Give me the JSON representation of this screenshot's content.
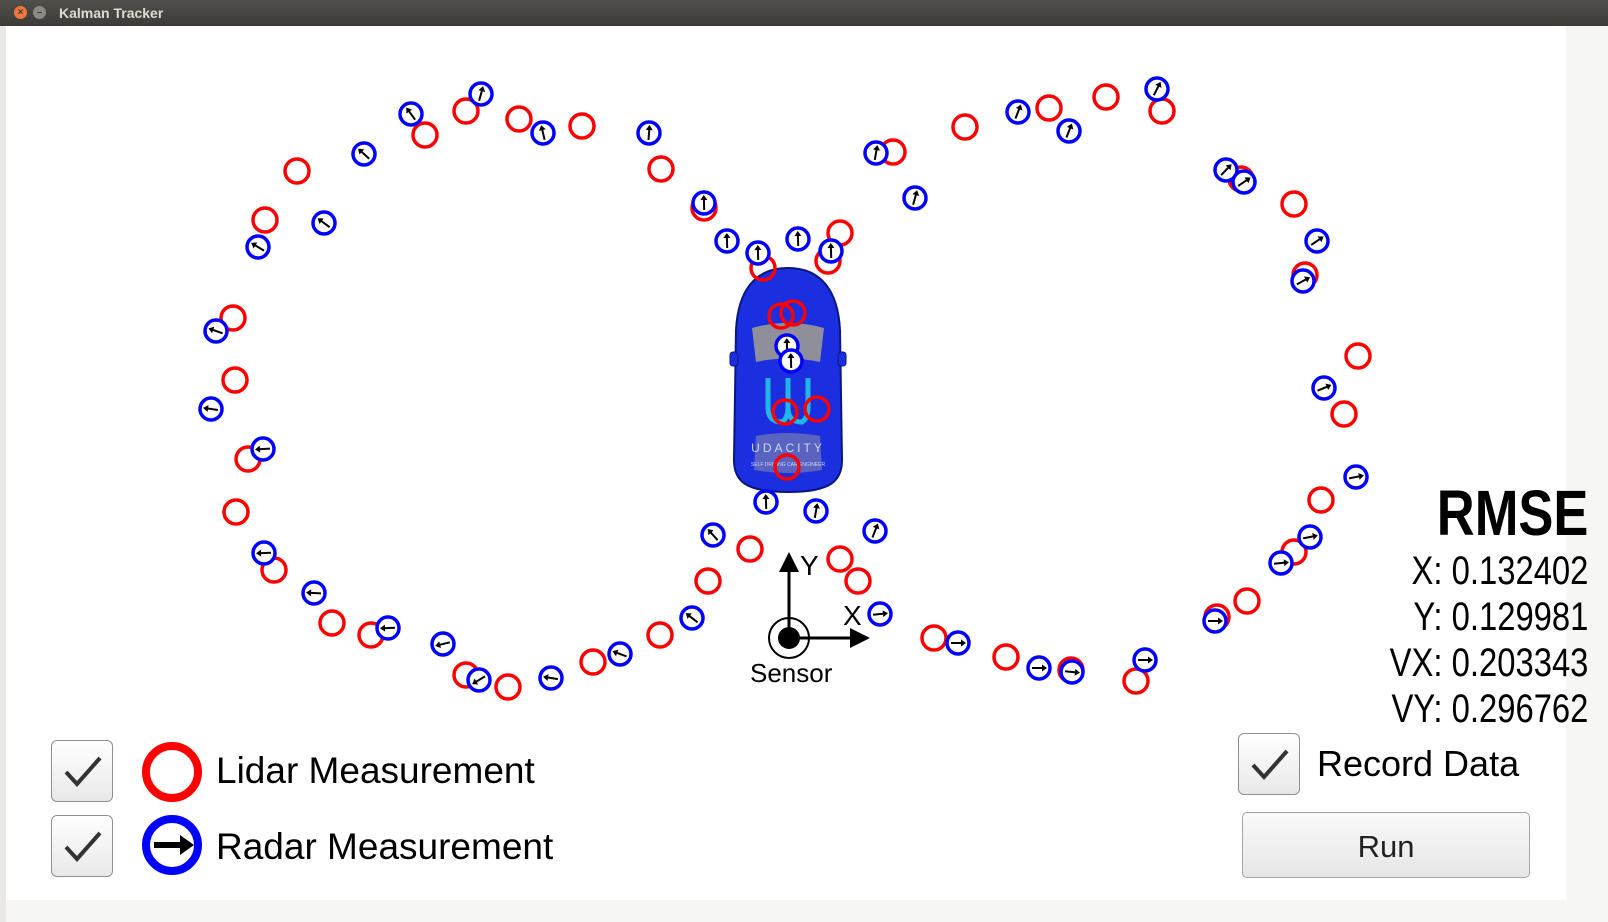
{
  "window": {
    "title": "Kalman Tracker"
  },
  "axes": {
    "y_label": "Y",
    "x_label": "X",
    "sensor_label": "Sensor"
  },
  "car": {
    "brand_text": "UDACITY",
    "brand_subtext": "SELF DRIVING CAR ENGINEER"
  },
  "rmse": {
    "title": "RMSE",
    "x": "X: 0.132402",
    "y": "Y: 0.129981",
    "vx": "VX: 0.203343",
    "vy": "VY: 0.296762"
  },
  "legend": {
    "lidar_label": "Lidar Measurement",
    "radar_label": "Radar Measurement",
    "lidar_checked": true,
    "radar_checked": true
  },
  "controls": {
    "record_label": "Record Data",
    "record_checked": true,
    "run_label": "Run"
  },
  "colors": {
    "lidar": "#ff0000",
    "radar": "#0000ff",
    "car": "#1b2fe0"
  },
  "lidar_points": [
    [
      425,
      135
    ],
    [
      466,
      111
    ],
    [
      519,
      119
    ],
    [
      582,
      126
    ],
    [
      297,
      171
    ],
    [
      265,
      220
    ],
    [
      233,
      318
    ],
    [
      235,
      380
    ],
    [
      248,
      459
    ],
    [
      236,
      512
    ],
    [
      274,
      570
    ],
    [
      332,
      623
    ],
    [
      371,
      635
    ],
    [
      466,
      675
    ],
    [
      508,
      687
    ],
    [
      593,
      662
    ],
    [
      660,
      635
    ],
    [
      708,
      581
    ],
    [
      750,
      549
    ],
    [
      661,
      169
    ],
    [
      704,
      208
    ],
    [
      763,
      268
    ],
    [
      828,
      261
    ],
    [
      840,
      233
    ],
    [
      781,
      316
    ],
    [
      793,
      313
    ],
    [
      817,
      409
    ],
    [
      785,
      412
    ],
    [
      787,
      467
    ],
    [
      840,
      559
    ],
    [
      858,
      581
    ],
    [
      934,
      638
    ],
    [
      1006,
      657
    ],
    [
      1071,
      670
    ],
    [
      1136,
      681
    ],
    [
      893,
      152
    ],
    [
      965,
      127
    ],
    [
      1049,
      108
    ],
    [
      1106,
      97
    ],
    [
      1162,
      111
    ],
    [
      1241,
      179
    ],
    [
      1294,
      204
    ],
    [
      1305,
      275
    ],
    [
      1358,
      356
    ],
    [
      1344,
      414
    ],
    [
      1321,
      500
    ],
    [
      1294,
      552
    ],
    [
      1247,
      601
    ],
    [
      1217,
      617
    ]
  ],
  "radar_points": [
    [
      481,
      94,
      -1.3
    ],
    [
      411,
      114,
      -2.2
    ],
    [
      543,
      133,
      -1.8
    ],
    [
      364,
      154,
      -2.4
    ],
    [
      324,
      223,
      -2.5
    ],
    [
      258,
      247,
      -2.6
    ],
    [
      216,
      331,
      -2.8
    ],
    [
      211,
      409,
      -3.0
    ],
    [
      263,
      449,
      -3.2
    ],
    [
      264,
      553,
      3.1
    ],
    [
      314,
      593,
      3.2
    ],
    [
      388,
      628,
      3.1
    ],
    [
      443,
      644,
      2.9
    ],
    [
      479,
      680,
      2.6
    ],
    [
      551,
      678,
      3.3
    ],
    [
      620,
      654,
      3.5
    ],
    [
      692,
      618,
      3.8
    ],
    [
      713,
      535,
      -2.3
    ],
    [
      649,
      133,
      -1.5
    ],
    [
      704,
      203,
      -1.6
    ],
    [
      727,
      241,
      -1.6
    ],
    [
      758,
      253,
      -1.6
    ],
    [
      798,
      239,
      -1.6
    ],
    [
      831,
      251,
      -1.6
    ],
    [
      787,
      346,
      -1.6
    ],
    [
      791,
      361,
      -1.6
    ],
    [
      766,
      502,
      -1.6
    ],
    [
      816,
      511,
      -1.4
    ],
    [
      875,
      531,
      -1.2
    ],
    [
      880,
      614,
      -0.1
    ],
    [
      958,
      643,
      0.0
    ],
    [
      1039,
      668,
      0.0
    ],
    [
      1072,
      672,
      0.1
    ],
    [
      1145,
      660,
      0.0
    ],
    [
      876,
      153,
      -1.4
    ],
    [
      915,
      198,
      -1.3
    ],
    [
      1018,
      112,
      -1.2
    ],
    [
      1069,
      131,
      -1.2
    ],
    [
      1157,
      89,
      -1.1
    ],
    [
      1226,
      170,
      -0.8
    ],
    [
      1244,
      182,
      -0.6
    ],
    [
      1317,
      241,
      -0.6
    ],
    [
      1303,
      281,
      -0.5
    ],
    [
      1324,
      388,
      -0.4
    ],
    [
      1356,
      477,
      -0.2
    ],
    [
      1310,
      537,
      -0.2
    ],
    [
      1281,
      563,
      -0.1
    ],
    [
      1215,
      621,
      0.0
    ]
  ]
}
